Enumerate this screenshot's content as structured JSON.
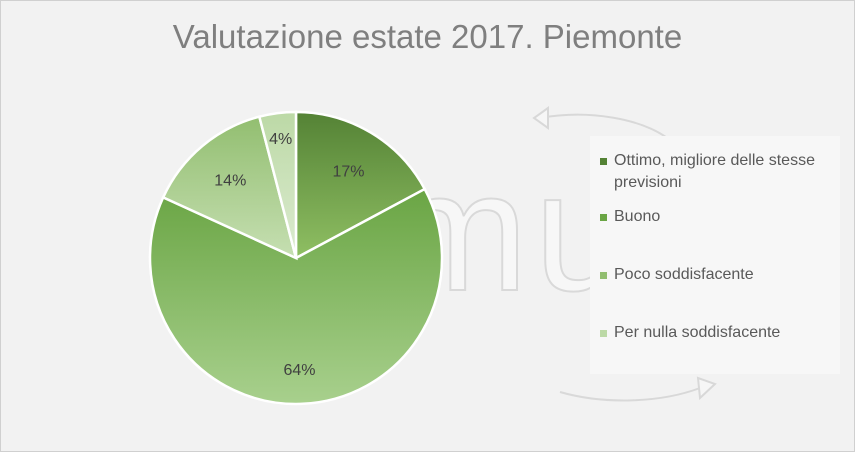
{
  "chart_data": {
    "type": "pie",
    "title": "Valutazione estate 2017. Piemonte",
    "categories": [
      "Ottimo, migliore delle stesse previsioni",
      "Buono",
      "Poco soddisfacente",
      "Per nulla soddisfacente"
    ],
    "values": [
      17,
      64,
      14,
      4
    ],
    "data_labels": [
      "17%",
      "64%",
      "14%",
      "4%"
    ],
    "colors": [
      "#6a9e3f",
      "#7aad4e",
      "#a9cc8d",
      "#cde2bc"
    ],
    "legend_position": "right"
  },
  "watermark": "tramuk"
}
